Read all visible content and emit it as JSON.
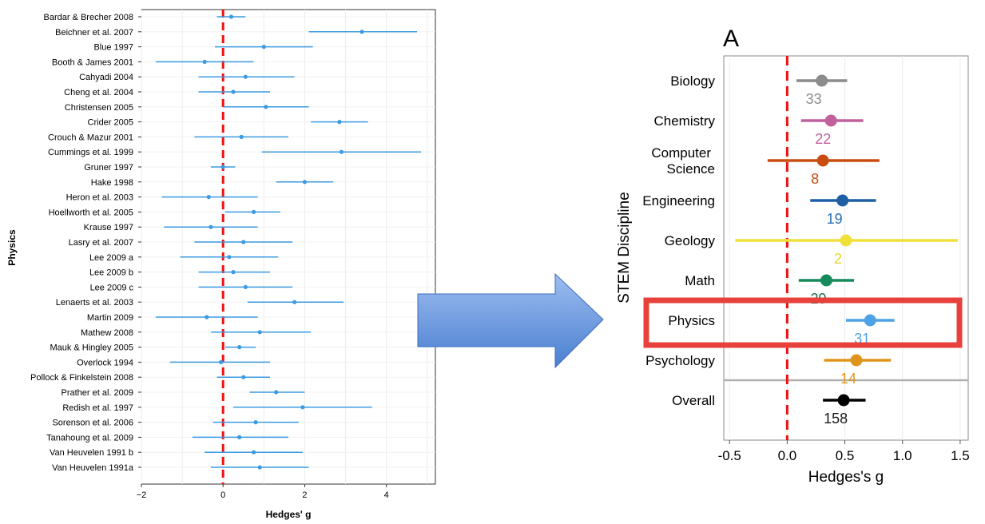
{
  "chart_data": [
    {
      "type": "forest",
      "ylabel": "Physics",
      "xlabel": "Hedges' g",
      "xlim": [
        -2,
        5.2
      ],
      "xticks": [
        -2,
        0,
        2,
        4
      ],
      "xtick_labels": [
        "−2",
        "0",
        "2",
        "4"
      ],
      "reference_line": 0,
      "grid": true,
      "color": "#3b9ae1",
      "studies": [
        {
          "label": "Bardar & Brecher 2008",
          "g": 0.2,
          "lo": -0.15,
          "hi": 0.55
        },
        {
          "label": "Beichner et al. 2007",
          "g": 3.4,
          "lo": 2.1,
          "hi": 4.75
        },
        {
          "label": "Blue 1997",
          "g": 1.0,
          "lo": -0.2,
          "hi": 2.2
        },
        {
          "label": "Booth & James 2001",
          "g": -0.45,
          "lo": -1.65,
          "hi": 0.75
        },
        {
          "label": "Cahyadi 2004",
          "g": 0.55,
          "lo": -0.6,
          "hi": 1.75
        },
        {
          "label": "Cheng et al. 2004",
          "g": 0.25,
          "lo": -0.6,
          "hi": 1.15
        },
        {
          "label": "Christensen 2005",
          "g": 1.05,
          "lo": 0.0,
          "hi": 2.1
        },
        {
          "label": "Crider 2005",
          "g": 2.85,
          "lo": 2.15,
          "hi": 3.55
        },
        {
          "label": "Crouch & Mazur 2001",
          "g": 0.45,
          "lo": -0.7,
          "hi": 1.6
        },
        {
          "label": "Cummings et al. 1999",
          "g": 2.9,
          "lo": 0.95,
          "hi": 4.85
        },
        {
          "label": "Gruner 1997",
          "g": 0.0,
          "lo": -0.3,
          "hi": 0.3
        },
        {
          "label": "Hake 1998",
          "g": 2.0,
          "lo": 1.3,
          "hi": 2.7
        },
        {
          "label": "Heron et al. 2003",
          "g": -0.35,
          "lo": -1.5,
          "hi": 0.85
        },
        {
          "label": "Hoellworth et al. 2005",
          "g": 0.75,
          "lo": 0.05,
          "hi": 1.4
        },
        {
          "label": "Krause 1997",
          "g": -0.3,
          "lo": -1.45,
          "hi": 0.85
        },
        {
          "label": "Lasry et al. 2007",
          "g": 0.5,
          "lo": -0.7,
          "hi": 1.7
        },
        {
          "label": "Lee 2009 a",
          "g": 0.15,
          "lo": -1.05,
          "hi": 1.35
        },
        {
          "label": "Lee 2009 b",
          "g": 0.25,
          "lo": -0.6,
          "hi": 1.15
        },
        {
          "label": "Lee 2009 c",
          "g": 0.55,
          "lo": -0.6,
          "hi": 1.7
        },
        {
          "label": "Lenaerts et al. 2003",
          "g": 1.75,
          "lo": 0.6,
          "hi": 2.95
        },
        {
          "label": "Martin 2009",
          "g": -0.4,
          "lo": -1.65,
          "hi": 0.85
        },
        {
          "label": "Mathew 2008",
          "g": 0.9,
          "lo": -0.3,
          "hi": 2.15
        },
        {
          "label": "Mauk & Hingley 2005",
          "g": 0.4,
          "lo": 0.05,
          "hi": 0.8
        },
        {
          "label": "Overlock 1994",
          "g": -0.05,
          "lo": -1.3,
          "hi": 1.15
        },
        {
          "label": "Pollock & Finkelstein 2008",
          "g": 0.5,
          "lo": -0.15,
          "hi": 1.15
        },
        {
          "label": "Prather et al. 2009",
          "g": 1.3,
          "lo": 0.65,
          "hi": 2.0
        },
        {
          "label": "Redish et al. 1997",
          "g": 1.95,
          "lo": 0.25,
          "hi": 3.65
        },
        {
          "label": "Sorenson et al. 2006",
          "g": 0.8,
          "lo": -0.25,
          "hi": 1.85
        },
        {
          "label": "Tanahoung et al. 2009",
          "g": 0.4,
          "lo": -0.75,
          "hi": 1.6
        },
        {
          "label": "Van Heuvelen 1991 b",
          "g": 0.75,
          "lo": -0.45,
          "hi": 1.95
        },
        {
          "label": "Van Heuvelen 1991a",
          "g": 0.9,
          "lo": -0.3,
          "hi": 2.1
        }
      ]
    },
    {
      "type": "forest",
      "panel_label": "A",
      "ylabel": "STEM Discipline",
      "xlabel": "Hedges's g",
      "xlim": [
        -0.55,
        1.57
      ],
      "xticks": [
        -0.5,
        0.0,
        0.5,
        1.0,
        1.5
      ],
      "xtick_labels": [
        "-0.5",
        "0.0",
        "0.5",
        "1.0",
        "1.5"
      ],
      "reference_line": 0,
      "grid": true,
      "highlight": "Physics",
      "highlight_color": "#e8413c",
      "disciplines": [
        {
          "label": "Biology",
          "g": 0.3,
          "lo": 0.08,
          "hi": 0.52,
          "n": "33",
          "color": "#8c8c8c",
          "n_color": "#8c8c8c"
        },
        {
          "label": "Chemistry",
          "g": 0.38,
          "lo": 0.12,
          "hi": 0.66,
          "n": "22",
          "color": "#c0619d",
          "n_color": "#c0619d"
        },
        {
          "label": "Computer\nScience",
          "g": 0.31,
          "lo": -0.17,
          "hi": 0.8,
          "n": "8",
          "color": "#c94d10",
          "n_color": "#c94d10"
        },
        {
          "label": "Engineering",
          "g": 0.48,
          "lo": 0.2,
          "hi": 0.77,
          "n": "19",
          "color": "#1f5fa6",
          "n_color": "#2c6fb5"
        },
        {
          "label": "Geology",
          "g": 0.51,
          "lo": -0.45,
          "hi": 1.48,
          "n": "2",
          "color": "#efe13a",
          "n_color": "#e6d62c"
        },
        {
          "label": "Math",
          "g": 0.34,
          "lo": 0.1,
          "hi": 0.58,
          "n": "29",
          "color": "#178a5c",
          "n_color": "#1f6e4f"
        },
        {
          "label": "Physics",
          "g": 0.72,
          "lo": 0.51,
          "hi": 0.93,
          "n": "31",
          "color": "#4ea3e6",
          "n_color": "#4ea3e6"
        },
        {
          "label": "Psychology",
          "g": 0.6,
          "lo": 0.32,
          "hi": 0.9,
          "n": "14",
          "color": "#e0951a",
          "n_color": "#e0951a"
        },
        {
          "label": "Overall",
          "g": 0.49,
          "lo": 0.31,
          "hi": 0.68,
          "n": "158",
          "color": "#000000",
          "n_color": "#1a1a1a"
        }
      ]
    }
  ],
  "arrow": {
    "direction": "right",
    "fill": "#5b8fd6"
  }
}
